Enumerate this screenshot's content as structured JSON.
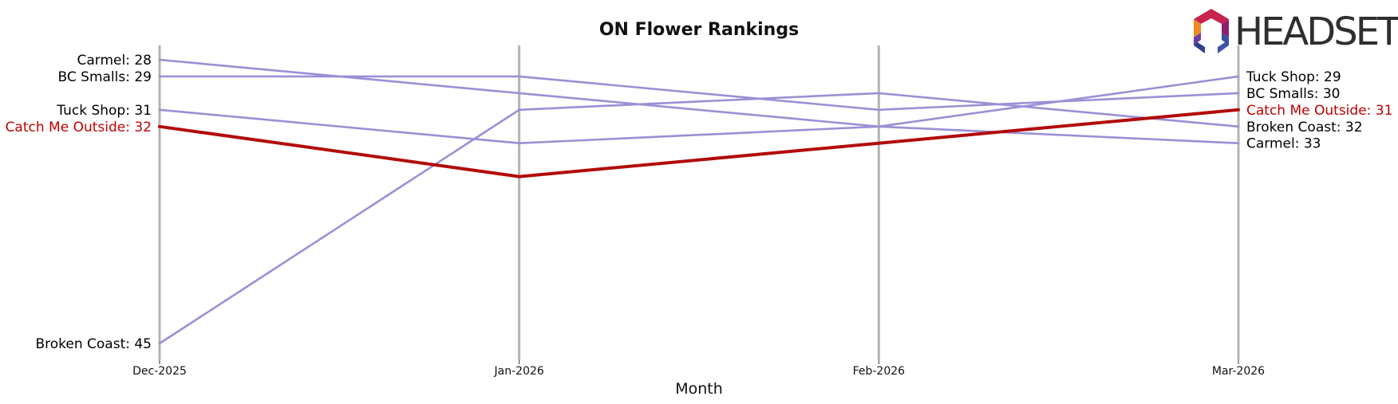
{
  "chart_data": {
    "type": "line",
    "title": "ON Flower Rankings",
    "xlabel": "Month",
    "ylabel": "",
    "categories": [
      "Dec-2025",
      "Jan-2026",
      "Feb-2026",
      "Mar-2026"
    ],
    "y_inverted": true,
    "ylim": [
      27,
      46
    ],
    "grid": "vertical lines at each month",
    "legend": "none",
    "series": [
      {
        "name": "Carmel",
        "values": [
          28,
          30,
          32,
          33
        ],
        "color": "#9b8fd6",
        "highlight": false
      },
      {
        "name": "BC Smalls",
        "values": [
          29,
          29,
          31,
          30
        ],
        "color": "#9b8fd6",
        "highlight": false
      },
      {
        "name": "Tuck Shop",
        "values": [
          31,
          33,
          32,
          29
        ],
        "color": "#9b8fd6",
        "highlight": false
      },
      {
        "name": "Broken Coast",
        "values": [
          45,
          31,
          30,
          32
        ],
        "color": "#9b8fd6",
        "highlight": false
      },
      {
        "name": "Catch Me Outside",
        "values": [
          32,
          35,
          33,
          31
        ],
        "color": "#b30a0a",
        "highlight": true
      }
    ],
    "left_labels": [
      {
        "text": "Carmel: 28",
        "value": 28,
        "highlight": false
      },
      {
        "text": "BC Smalls: 29",
        "value": 29,
        "highlight": false
      },
      {
        "text": "Tuck Shop: 31",
        "value": 31,
        "highlight": false
      },
      {
        "text": "Catch Me Outside: 32",
        "value": 32,
        "highlight": true
      },
      {
        "text": "Broken Coast: 45",
        "value": 45,
        "highlight": false
      }
    ],
    "right_labels": [
      {
        "text": "Tuck Shop: 29",
        "value": 29,
        "highlight": false
      },
      {
        "text": "BC Smalls: 30",
        "value": 30,
        "highlight": false
      },
      {
        "text": "Catch Me Outside: 31",
        "value": 31,
        "highlight": true
      },
      {
        "text": "Broken Coast: 32",
        "value": 32,
        "highlight": false
      },
      {
        "text": "Carmel: 33",
        "value": 33,
        "highlight": false
      }
    ]
  },
  "logo": {
    "text": "HEADSET",
    "icon": "headset-hexagon-logo"
  },
  "colors": {
    "normal_line": "#9b8fd6",
    "highlight_line": "#b30a0a",
    "grid_line": "#b3b3b3",
    "label_text": "#000000",
    "highlight_text": "#c00000"
  }
}
